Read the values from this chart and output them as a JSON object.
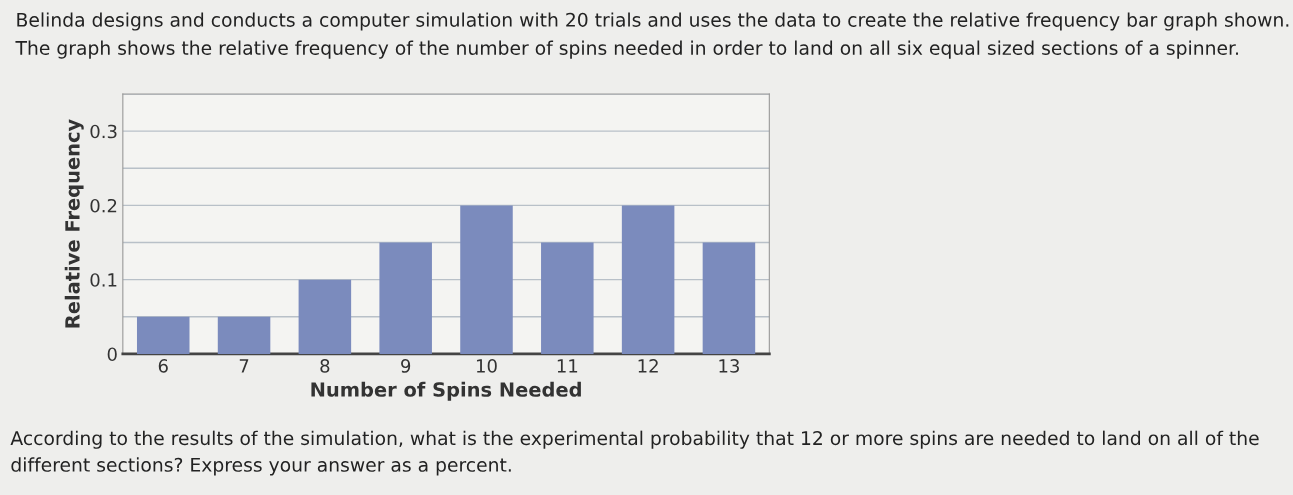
{
  "chart_data": {
    "type": "bar",
    "title": "Belinda designs and conducts a computer simulation with 20 trials and uses the data to create the relative frequency bar graph shown. The graph shows the relative frequency of the number of spins needed in order to land on all six equal sized sections of a spinner.",
    "xlabel": "Number of Spins Needed",
    "ylabel": "Relative Frequency",
    "categories": [
      "6",
      "7",
      "8",
      "9",
      "10",
      "11",
      "12",
      "13"
    ],
    "values": [
      0.05,
      0.05,
      0.1,
      0.15,
      0.2,
      0.15,
      0.2,
      0.15
    ],
    "color": "#7b8bbd",
    "ylim": [
      0,
      0.35
    ],
    "yticks": [
      0,
      {
        "value": 0.05,
        "label": null
      },
      0.1,
      {
        "value": 0.15,
        "label": null
      },
      0.2,
      {
        "value": 0.25,
        "label": null
      },
      0.3,
      {
        "value": 0.35,
        "label": null
      }
    ],
    "grid": "y",
    "annotations": [
      "According to the results of the simulation, what is the experimental probability that 12 or more spins are needed to land on all of the different sections? Express your answer as a percent."
    ]
  }
}
